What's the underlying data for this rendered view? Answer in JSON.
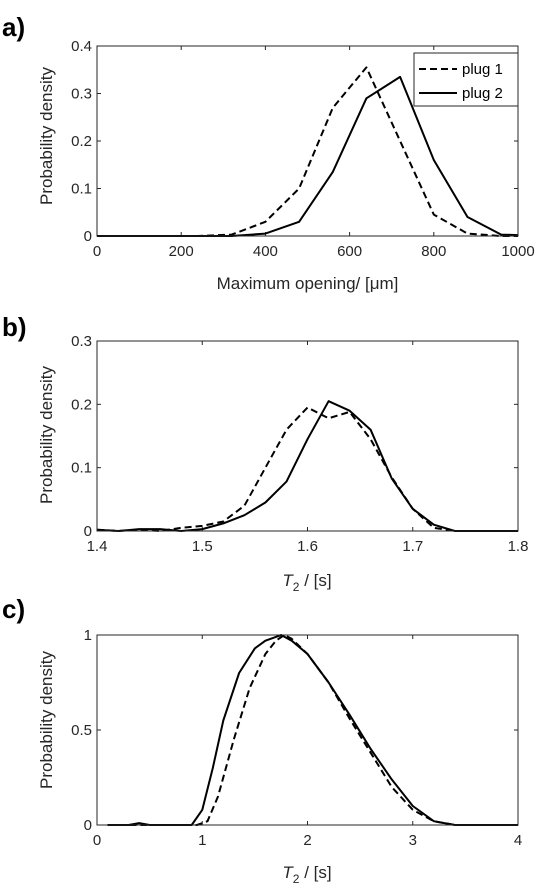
{
  "figure": {
    "panels": [
      {
        "panel_label": "a)",
        "xlabel": "Maximum opening/ [μm]",
        "ylabel": "Probability density",
        "legend": {
          "position": "top-right",
          "entries": [
            "plug 1",
            "plug 2"
          ]
        }
      },
      {
        "panel_label": "b)",
        "xlabel_main": "T",
        "xlabel_sub": "2",
        "xlabel_rest": " / [s]",
        "ylabel": "Probability density"
      },
      {
        "panel_label": "c)",
        "xlabel_main": "T",
        "xlabel_sub": "2",
        "xlabel_rest": " / [s]",
        "ylabel": "Probability density"
      }
    ]
  },
  "chart_data": [
    {
      "type": "line",
      "xlim": [
        0,
        1000
      ],
      "ylim": [
        0,
        0.4
      ],
      "xticks": [
        0,
        200,
        400,
        600,
        800,
        1000
      ],
      "yticks": [
        0,
        0.1,
        0.2,
        0.3,
        0.4
      ],
      "xtick_labels": [
        "0",
        "200",
        "400",
        "600",
        "800",
        "1000"
      ],
      "ytick_labels": [
        "0",
        "0.1",
        "0.2",
        "0.3",
        "0.4"
      ],
      "grid": false,
      "series": [
        {
          "name": "plug 1",
          "style": "dashed",
          "x": [
            0,
            80,
            160,
            240,
            320,
            400,
            480,
            560,
            640,
            720,
            800,
            880,
            960,
            1000
          ],
          "y": [
            0,
            0,
            0,
            0,
            0.003,
            0.03,
            0.1,
            0.27,
            0.355,
            0.2,
            0.045,
            0.005,
            0,
            0
          ]
        },
        {
          "name": "plug 2",
          "style": "solid",
          "x": [
            0,
            80,
            160,
            240,
            320,
            400,
            480,
            560,
            640,
            720,
            800,
            880,
            960,
            1000
          ],
          "y": [
            0,
            0,
            0,
            0,
            0,
            0.005,
            0.03,
            0.135,
            0.29,
            0.335,
            0.16,
            0.04,
            0.003,
            0.002
          ]
        }
      ]
    },
    {
      "type": "line",
      "xlim": [
        1.4,
        1.8
      ],
      "ylim": [
        0,
        0.3
      ],
      "xticks": [
        1.4,
        1.5,
        1.6,
        1.7,
        1.8
      ],
      "yticks": [
        0,
        0.1,
        0.2,
        0.3
      ],
      "xtick_labels": [
        "1.4",
        "1.5",
        "1.6",
        "1.7",
        "1.8"
      ],
      "ytick_labels": [
        "0",
        "0.1",
        "0.2",
        "0.3"
      ],
      "grid": false,
      "series": [
        {
          "name": "plug 1",
          "style": "dashed",
          "x": [
            1.4,
            1.42,
            1.44,
            1.46,
            1.48,
            1.5,
            1.52,
            1.54,
            1.56,
            1.58,
            1.6,
            1.62,
            1.64,
            1.66,
            1.68,
            1.7,
            1.72,
            1.74,
            1.76,
            1.78,
            1.8
          ],
          "y": [
            0.002,
            0,
            0.002,
            0,
            0.005,
            0.008,
            0.015,
            0.04,
            0.1,
            0.16,
            0.195,
            0.178,
            0.188,
            0.145,
            0.085,
            0.035,
            0.005,
            0,
            0,
            0,
            0
          ]
        },
        {
          "name": "plug 2",
          "style": "solid",
          "x": [
            1.4,
            1.42,
            1.44,
            1.46,
            1.48,
            1.5,
            1.52,
            1.54,
            1.56,
            1.58,
            1.6,
            1.62,
            1.64,
            1.66,
            1.68,
            1.7,
            1.72,
            1.74,
            1.76,
            1.78,
            1.8
          ],
          "y": [
            0.002,
            0,
            0.003,
            0.003,
            0,
            0.003,
            0.012,
            0.025,
            0.045,
            0.078,
            0.145,
            0.205,
            0.19,
            0.16,
            0.083,
            0.035,
            0.01,
            0,
            0,
            0,
            0
          ]
        }
      ]
    },
    {
      "type": "line",
      "xlim": [
        0,
        4
      ],
      "ylim": [
        0,
        1
      ],
      "xticks": [
        0,
        1,
        2,
        3,
        4
      ],
      "yticks": [
        0,
        0.5,
        1
      ],
      "xtick_labels": [
        "0",
        "1",
        "2",
        "3",
        "4"
      ],
      "ytick_labels": [
        "0",
        "0.5",
        "1"
      ],
      "grid": false,
      "series": [
        {
          "name": "plug 1",
          "style": "dashed",
          "x": [
            0.1,
            0.4,
            0.7,
            0.95,
            1.05,
            1.15,
            1.3,
            1.45,
            1.6,
            1.7,
            1.78,
            1.85,
            2.0,
            2.2,
            2.4,
            2.6,
            2.8,
            3.0,
            3.2,
            3.4,
            3.7,
            4.0
          ],
          "y": [
            0,
            0,
            0,
            0,
            0.02,
            0.15,
            0.45,
            0.72,
            0.9,
            0.97,
            1.0,
            0.98,
            0.9,
            0.75,
            0.56,
            0.38,
            0.2,
            0.08,
            0.02,
            0,
            0,
            0
          ]
        },
        {
          "name": "plug 2",
          "style": "solid",
          "x": [
            0.1,
            0.3,
            0.4,
            0.5,
            0.7,
            0.9,
            1.0,
            1.1,
            1.2,
            1.35,
            1.5,
            1.6,
            1.7,
            1.75,
            1.85,
            2.0,
            2.2,
            2.4,
            2.6,
            2.8,
            3.0,
            3.2,
            3.4,
            3.7,
            4.0
          ],
          "y": [
            0,
            0,
            0.01,
            0,
            0,
            0,
            0.08,
            0.3,
            0.55,
            0.8,
            0.93,
            0.97,
            0.99,
            1.0,
            0.97,
            0.9,
            0.75,
            0.58,
            0.4,
            0.24,
            0.1,
            0.02,
            0,
            0,
            0
          ]
        }
      ]
    }
  ]
}
